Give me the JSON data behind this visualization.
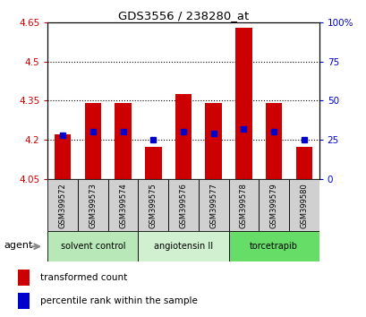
{
  "title": "GDS3556 / 238280_at",
  "samples": [
    "GSM399572",
    "GSM399573",
    "GSM399574",
    "GSM399575",
    "GSM399576",
    "GSM399577",
    "GSM399578",
    "GSM399579",
    "GSM399580"
  ],
  "bar_bottoms": [
    4.05,
    4.05,
    4.05,
    4.05,
    4.05,
    4.05,
    4.05,
    4.05,
    4.05
  ],
  "bar_tops": [
    4.22,
    4.34,
    4.34,
    4.175,
    4.375,
    4.34,
    4.63,
    4.34,
    4.175
  ],
  "percentile_values": [
    28,
    30,
    30,
    25,
    30,
    29,
    32,
    30,
    25
  ],
  "ylim_left": [
    4.05,
    4.65
  ],
  "ylim_right": [
    0,
    100
  ],
  "yticks_left": [
    4.05,
    4.2,
    4.35,
    4.5,
    4.65
  ],
  "ytick_labels_left": [
    "4.05",
    "4.2",
    "4.35",
    "4.5",
    "4.65"
  ],
  "yticks_right": [
    0,
    25,
    50,
    75,
    100
  ],
  "ytick_labels_right": [
    "0",
    "25",
    "50",
    "75",
    "100%"
  ],
  "hlines": [
    4.2,
    4.35,
    4.5
  ],
  "bar_color": "#cc0000",
  "dot_color": "#0000cc",
  "bar_width": 0.55,
  "groups": [
    {
      "label": "solvent control",
      "indices": [
        0,
        1,
        2
      ],
      "color": "#b8e8b8"
    },
    {
      "label": "angiotensin II",
      "indices": [
        3,
        4,
        5
      ],
      "color": "#d0f0d0"
    },
    {
      "label": "torcetrapib",
      "indices": [
        6,
        7,
        8
      ],
      "color": "#66dd66"
    }
  ],
  "agent_label": "agent",
  "legend_items": [
    {
      "label": "transformed count",
      "color": "#cc0000"
    },
    {
      "label": "percentile rank within the sample",
      "color": "#0000cc"
    }
  ],
  "title_color": "#000000",
  "left_tick_color": "#cc0000",
  "right_tick_color": "#0000cc",
  "bg_color": "#ffffff"
}
